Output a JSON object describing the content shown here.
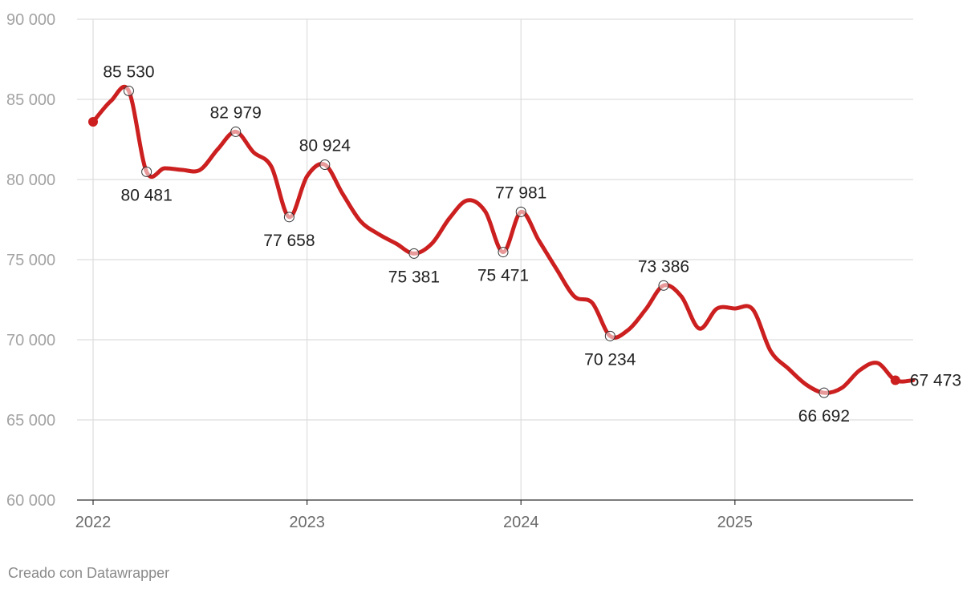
{
  "chart_data": {
    "type": "line",
    "title": "",
    "xlabel": "",
    "ylabel": "",
    "ylim": [
      60000,
      90000
    ],
    "xlim": [
      "2022-01",
      "2025-11"
    ],
    "y_ticks": [
      "60 000",
      "65 000",
      "70 000",
      "75 000",
      "80 000",
      "85 000",
      "90 000"
    ],
    "y_tick_values": [
      60000,
      65000,
      70000,
      75000,
      80000,
      85000,
      90000
    ],
    "x_ticks": [
      "2022",
      "2023",
      "2024",
      "2025"
    ],
    "x_tick_values": [
      "2022-01",
      "2023-01",
      "2024-01",
      "2025-01"
    ],
    "grid": true,
    "legend": "none",
    "line_color": "#cc1f1f",
    "series": [
      {
        "x": [
          "2022-01",
          "2022-02",
          "2022-03",
          "2022-04",
          "2022-05",
          "2022-06",
          "2022-07",
          "2022-08",
          "2022-09",
          "2022-10",
          "2022-11",
          "2022-12",
          "2023-01",
          "2023-02",
          "2023-03",
          "2023-04",
          "2023-05",
          "2023-06",
          "2023-07",
          "2023-08",
          "2023-09",
          "2023-10",
          "2023-11",
          "2023-12",
          "2024-01",
          "2024-02",
          "2024-03",
          "2024-04",
          "2024-05",
          "2024-06",
          "2024-07",
          "2024-08",
          "2024-09",
          "2024-10",
          "2024-11",
          "2024-12",
          "2025-01",
          "2025-02",
          "2025-03",
          "2025-04",
          "2025-05",
          "2025-06",
          "2025-07",
          "2025-08",
          "2025-09",
          "2025-10",
          "2025-11"
        ],
        "values": [
          83600,
          84900,
          85530,
          80481,
          80700,
          80600,
          80600,
          81900,
          82979,
          81700,
          80800,
          77658,
          80200,
          80924,
          79100,
          77400,
          76600,
          76000,
          75381,
          76000,
          77600,
          78700,
          78000,
          75471,
          77981,
          76200,
          74400,
          72700,
          72300,
          70234,
          70600,
          71900,
          73386,
          72700,
          70700,
          71950,
          71950,
          71900,
          69300,
          68200,
          67200,
          66692,
          67000,
          68100,
          68550,
          67473,
          67473
        ]
      }
    ],
    "labeled_points": [
      {
        "x": "2022-03",
        "value": 85530,
        "label": "85 530",
        "position": "above"
      },
      {
        "x": "2022-04",
        "value": 80481,
        "label": "80 481",
        "position": "below"
      },
      {
        "x": "2022-09",
        "value": 82979,
        "label": "82 979",
        "position": "above"
      },
      {
        "x": "2022-12",
        "value": 77658,
        "label": "77 658",
        "position": "below"
      },
      {
        "x": "2023-02",
        "value": 80924,
        "label": "80 924",
        "position": "above"
      },
      {
        "x": "2023-07",
        "value": 75381,
        "label": "75 381",
        "position": "below"
      },
      {
        "x": "2023-12",
        "value": 75471,
        "label": "75 471",
        "position": "below"
      },
      {
        "x": "2024-01",
        "value": 77981,
        "label": "77 981",
        "position": "above"
      },
      {
        "x": "2024-06",
        "value": 70234,
        "label": "70 234",
        "position": "below"
      },
      {
        "x": "2024-09",
        "value": 73386,
        "label": "73 386",
        "position": "above"
      },
      {
        "x": "2025-06",
        "value": 66692,
        "label": "66 692",
        "position": "below"
      },
      {
        "x": "2025-10",
        "value": 67473,
        "label": "67 473",
        "position": "right",
        "filled": true
      }
    ],
    "start_point": {
      "x": "2022-01",
      "value": 83600,
      "filled": true
    }
  },
  "footer": {
    "credit": "Creado con Datawrapper"
  }
}
